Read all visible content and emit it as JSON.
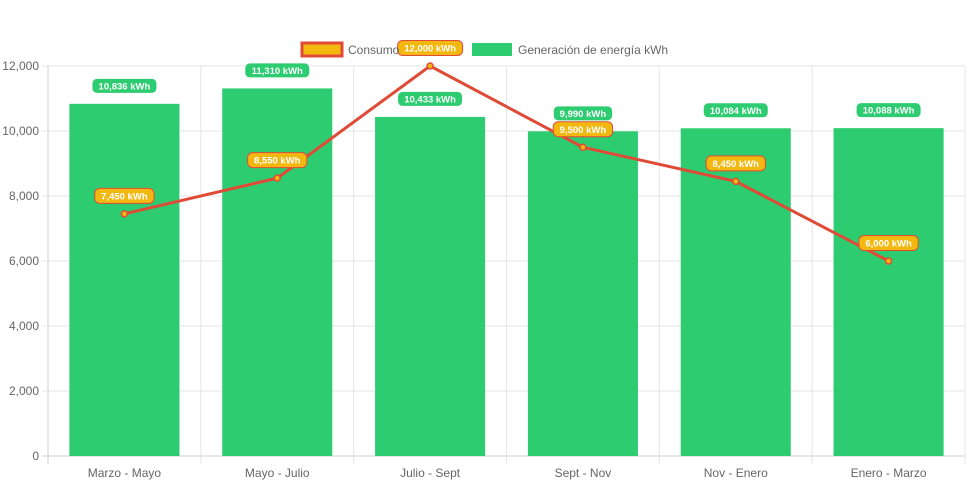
{
  "chart_data": {
    "type": "bar",
    "categories": [
      "Marzo - Mayo",
      "Mayo - Julio",
      "Julio - Sept",
      "Sept - Nov",
      "Nov - Enero",
      "Enero - Marzo"
    ],
    "series": [
      {
        "name": "Consumo",
        "type": "line",
        "values": [
          7450,
          8550,
          12000,
          9500,
          8450,
          6000
        ],
        "labels": [
          "7,450 kWh",
          "8,550 kWh",
          "12,000 kWh",
          "9,500 kWh",
          "8,450 kWh",
          "6,000 kWh"
        ],
        "line_color": "#e04b37",
        "label_color": "#f3b80f"
      },
      {
        "name": "Generación de energía kWh",
        "type": "bar",
        "values": [
          10836,
          11310,
          10433,
          9990,
          10084,
          10088
        ],
        "labels": [
          "10,836 kWh",
          "11,310 kWh",
          "10,433 kWh",
          "9,990 kWh",
          "10,084 kWh",
          "10,088 kWh"
        ],
        "color": "#2ecc71"
      }
    ],
    "ylim": [
      0,
      12000
    ],
    "yticks": [
      0,
      2000,
      4000,
      6000,
      8000,
      10000,
      12000
    ],
    "ytick_labels": [
      "0",
      "2,000",
      "4,000",
      "6,000",
      "8,000",
      "10,000",
      "12,000"
    ],
    "xlabel": "",
    "ylabel": "",
    "grid": true,
    "legend_position": "top"
  },
  "legend": {
    "consumo_label": "Consumo",
    "generacion_label": "Generación de energía kWh"
  }
}
